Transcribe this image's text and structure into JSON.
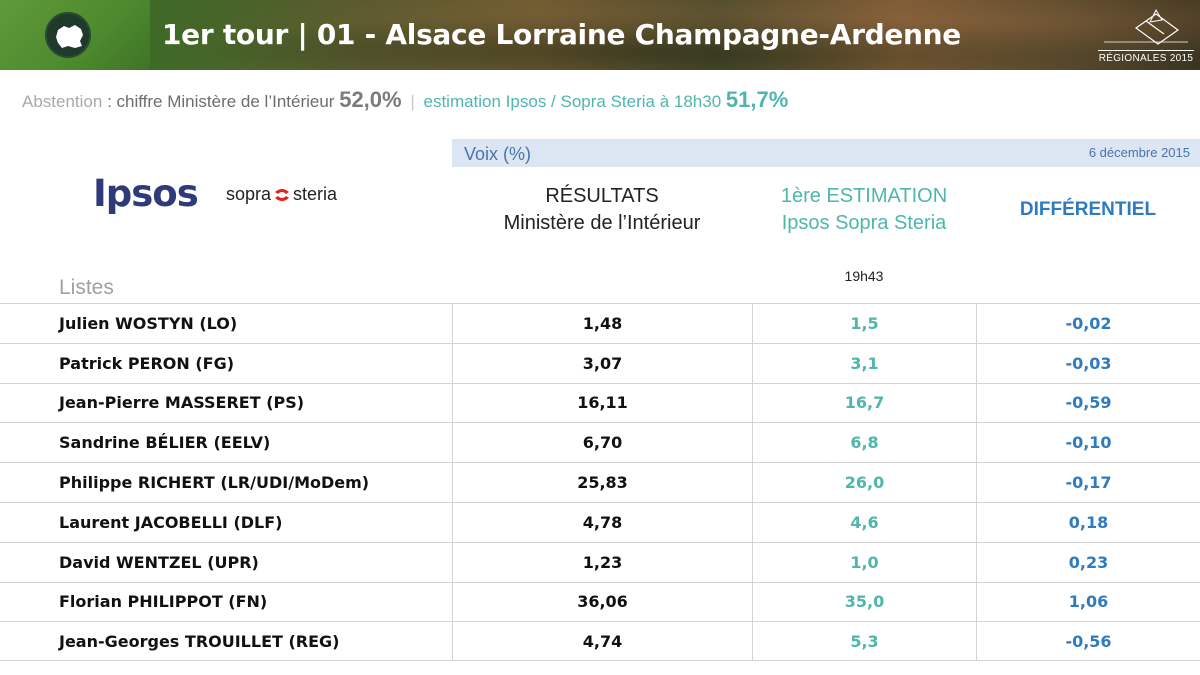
{
  "header": {
    "title": "1er tour | 01 - Alsace Lorraine Champagne-Ardenne",
    "badge": "RÉGIONALES 2015"
  },
  "abstention": {
    "label": "Abstention",
    "colon": " : ",
    "ministere_text": "chiffre Ministère de l’Intérieur",
    "ministere_value": "52,0%",
    "separator": "|",
    "estimation_text": "estimation Ipsos / Sopra Steria à 18h30",
    "estimation_value": "51,7%"
  },
  "voix": {
    "label": "Voix (%)",
    "date": "6 décembre 2015"
  },
  "logos": {
    "ipsos": "Ipsos",
    "sopra": "sopra",
    "steria": "steria"
  },
  "columns": {
    "resultats_line1": "RÉSULTATS",
    "resultats_line2": "Ministère de l’Intérieur",
    "estimation_line1": "1ère ESTIMATION",
    "estimation_line2": "Ipsos Sopra Steria",
    "differentiel": "DIFFÉRENTIEL",
    "time": "19h43",
    "listes": "Listes"
  },
  "colors": {
    "estimation": "#4fb5ad",
    "differentiel": "#2f7bbf",
    "band": "#dce6f2"
  },
  "rows": [
    {
      "name": "Julien WOSTYN (LO)",
      "resultat": "1,48",
      "estimation": "1,5",
      "diff": "-0,02"
    },
    {
      "name": "Patrick PERON (FG)",
      "resultat": "3,07",
      "estimation": "3,1",
      "diff": "-0,03"
    },
    {
      "name": "Jean-Pierre MASSERET (PS)",
      "resultat": "16,11",
      "estimation": "16,7",
      "diff": "-0,59"
    },
    {
      "name": "Sandrine BÉLIER (EELV)",
      "resultat": "6,70",
      "estimation": "6,8",
      "diff": "-0,10"
    },
    {
      "name": "Philippe RICHERT (LR/UDI/MoDem)",
      "resultat": "25,83",
      "estimation": "26,0",
      "diff": "-0,17"
    },
    {
      "name": "Laurent JACOBELLI (DLF)",
      "resultat": "4,78",
      "estimation": "4,6",
      "diff": "0,18"
    },
    {
      "name": "David WENTZEL (UPR)",
      "resultat": "1,23",
      "estimation": "1,0",
      "diff": "0,23"
    },
    {
      "name": "Florian PHILIPPOT (FN)",
      "resultat": "36,06",
      "estimation": "35,0",
      "diff": "1,06"
    },
    {
      "name": "Jean-Georges TROUILLET (REG)",
      "resultat": "4,74",
      "estimation": "5,3",
      "diff": "-0,56"
    }
  ]
}
